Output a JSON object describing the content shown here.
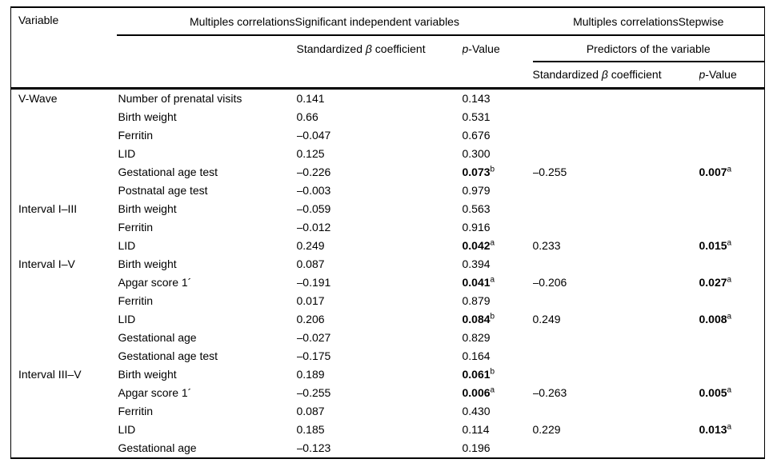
{
  "header": {
    "variable": "Variable",
    "span_left": "Multiples correlationsSignificant independent variables",
    "span_right": "Multiples correlationsStepwise",
    "predictors": "Predictors of the variable",
    "beta_pre": "Standardized ",
    "beta_sym": "β",
    "beta_post": " coefficient",
    "p_sym": "p",
    "p_post": "-Value"
  },
  "colors": {
    "text": "#000000",
    "border": "#000000",
    "background": "#ffffff"
  },
  "groups": [
    {
      "variable": "V-Wave",
      "rows": [
        {
          "name": "Number of prenatal visits",
          "beta1": "0.141",
          "p1": "0.143"
        },
        {
          "name": "Birth weight",
          "beta1": "0.66",
          "p1": "0.531"
        },
        {
          "name": "Ferritin",
          "beta1": "–0.047",
          "p1": "0.676"
        },
        {
          "name": "LID",
          "beta1": "0.125",
          "p1": "0.300"
        },
        {
          "name": "Gestational age test",
          "beta1": "–0.226",
          "p1": "0.073",
          "p1_bold": true,
          "p1_sup": "b",
          "beta2": "–0.255",
          "p2": "0.007",
          "p2_bold": true,
          "p2_sup": "a"
        },
        {
          "name": "Postnatal age test",
          "beta1": "–0.003",
          "p1": "0.979"
        }
      ]
    },
    {
      "variable": "Interval I–III",
      "rows": [
        {
          "name": "Birth weight",
          "beta1": "–0.059",
          "p1": "0.563"
        },
        {
          "name": "Ferritin",
          "beta1": "–0.012",
          "p1": "0.916"
        },
        {
          "name": "LID",
          "beta1": "0.249",
          "p1": "0.042",
          "p1_bold": true,
          "p1_sup": "a",
          "beta2": "0.233",
          "p2": "0.015",
          "p2_bold": true,
          "p2_sup": "a"
        }
      ]
    },
    {
      "variable": "Interval I–V",
      "rows": [
        {
          "name": "Birth weight",
          "beta1": "0.087",
          "p1": "0.394"
        },
        {
          "name": "Apgar score 1´",
          "beta1": "–0.191",
          "p1": "0.041",
          "p1_bold": true,
          "p1_sup": "a",
          "beta2": "–0.206",
          "p2": "0.027",
          "p2_bold": true,
          "p2_sup": "a"
        },
        {
          "name": "Ferritin",
          "beta1": "0.017",
          "p1": "0.879"
        },
        {
          "name": "LID",
          "beta1": "0.206",
          "p1": "0.084",
          "p1_bold": true,
          "p1_sup": "b",
          "beta2": "0.249",
          "p2": "0.008",
          "p2_bold": true,
          "p2_sup": "a"
        },
        {
          "name": "Gestational age",
          "beta1": "–0.027",
          "p1": "0.829"
        },
        {
          "name": "Gestational age test",
          "beta1": "–0.175",
          "p1": "0.164"
        }
      ]
    },
    {
      "variable": "Interval III–V",
      "rows": [
        {
          "name": "Birth weight",
          "beta1": "0.189",
          "p1": "0.061",
          "p1_bold": true,
          "p1_sup": "b"
        },
        {
          "name": "Apgar score 1´",
          "beta1": "–0.255",
          "p1": "0.006",
          "p1_bold": true,
          "p1_sup": "a",
          "beta2": "–0.263",
          "p2": "0.005",
          "p2_bold": true,
          "p2_sup": "a"
        },
        {
          "name": "Ferritin",
          "beta1": "0.087",
          "p1": "0.430"
        },
        {
          "name": "LID",
          "beta1": "0.185",
          "p1": "0.114",
          "beta2": "0.229",
          "p2": "0.013",
          "p2_bold": true,
          "p2_sup": "a"
        },
        {
          "name": "Gestational age",
          "beta1": "–0.123",
          "p1": "0.196"
        }
      ]
    }
  ]
}
